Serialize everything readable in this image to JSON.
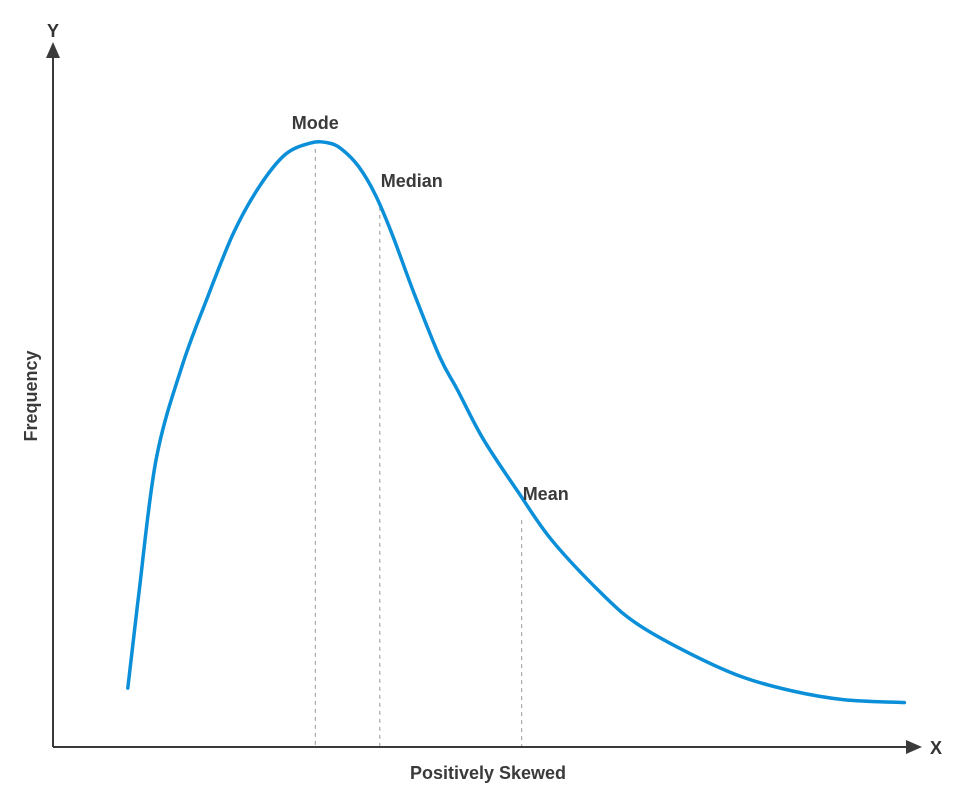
{
  "chart_data": {
    "type": "line",
    "title": "",
    "xlabel": "Positively Skewed",
    "ylabel": "Frequency",
    "x_axis_letter": "X",
    "y_axis_letter": "Y",
    "xlim": [
      0,
      10
    ],
    "ylim": [
      0,
      10
    ],
    "grid": false,
    "series": [
      {
        "color": "#0a8fd8",
        "x": [
          0.87,
          1.0,
          1.2,
          1.5,
          1.8,
          2.1,
          2.4,
          2.7,
          3.0,
          3.2,
          3.35,
          3.55,
          3.75,
          3.95,
          4.2,
          4.5,
          4.7,
          5.0,
          5.4,
          5.8,
          6.4,
          6.8,
          7.4,
          8.0,
          8.6,
          9.2,
          9.9
        ],
        "y": [
          0.55,
          2.2,
          4.5,
          6.1,
          7.3,
          8.4,
          9.2,
          9.75,
          9.95,
          9.95,
          9.85,
          9.55,
          9.05,
          8.35,
          7.35,
          6.25,
          5.7,
          4.85,
          3.95,
          3.1,
          2.15,
          1.65,
          1.15,
          0.75,
          0.5,
          0.35,
          0.3
        ]
      }
    ],
    "annotations": [
      {
        "label": "Mode",
        "x": 3.05,
        "y": 9.95
      },
      {
        "label": "Median",
        "x": 3.8,
        "y": 8.95
      },
      {
        "label": "Mean",
        "x": 5.45,
        "y": 3.55
      }
    ]
  }
}
